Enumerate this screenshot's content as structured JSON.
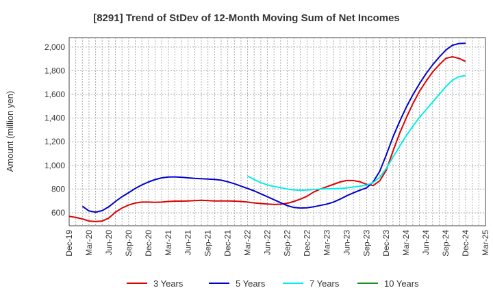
{
  "chart_data": {
    "type": "line",
    "title": "[8291]  Trend of StDev of 12-Month Moving Sum of Net Incomes",
    "ylabel": "Amount (million yen)",
    "xlabel": "",
    "ylim": [
      490,
      2080
    ],
    "yticks": [
      600,
      800,
      1000,
      1200,
      1400,
      1600,
      1800,
      2000
    ],
    "ytick_labels": [
      "600",
      "800",
      "1,000",
      "1,200",
      "1,400",
      "1,600",
      "1,800",
      "2,000"
    ],
    "x_range": [
      "2019-12",
      "2025-03"
    ],
    "xtick_labels": [
      "Dec-19",
      "Mar-20",
      "Jun-20",
      "Sep-20",
      "Dec-20",
      "Mar-21",
      "Jun-21",
      "Sep-21",
      "Dec-21",
      "Mar-22",
      "Jun-22",
      "Sep-22",
      "Dec-22",
      "Mar-23",
      "Jun-23",
      "Sep-23",
      "Dec-23",
      "Mar-24",
      "Jun-24",
      "Sep-24",
      "Dec-24",
      "Mar-25"
    ],
    "grid": true,
    "legend_position": "bottom",
    "series": [
      {
        "name": "3 Years",
        "color": "#dd0000",
        "points": [
          [
            "2019-12",
            570
          ],
          [
            "2020-01",
            560
          ],
          [
            "2020-02",
            548
          ],
          [
            "2020-03",
            530
          ],
          [
            "2020-04",
            525
          ],
          [
            "2020-05",
            530
          ],
          [
            "2020-06",
            555
          ],
          [
            "2020-07",
            605
          ],
          [
            "2020-08",
            640
          ],
          [
            "2020-09",
            665
          ],
          [
            "2020-10",
            682
          ],
          [
            "2020-11",
            690
          ],
          [
            "2020-12",
            690
          ],
          [
            "2021-01",
            688
          ],
          [
            "2021-02",
            690
          ],
          [
            "2021-03",
            695
          ],
          [
            "2021-04",
            698
          ],
          [
            "2021-05",
            698
          ],
          [
            "2021-06",
            700
          ],
          [
            "2021-07",
            703
          ],
          [
            "2021-08",
            705
          ],
          [
            "2021-09",
            702
          ],
          [
            "2021-10",
            700
          ],
          [
            "2021-11",
            700
          ],
          [
            "2021-12",
            700
          ],
          [
            "2022-01",
            698
          ],
          [
            "2022-02",
            695
          ],
          [
            "2022-03",
            690
          ],
          [
            "2022-04",
            683
          ],
          [
            "2022-05",
            678
          ],
          [
            "2022-06",
            673
          ],
          [
            "2022-07",
            670
          ],
          [
            "2022-08",
            672
          ],
          [
            "2022-09",
            680
          ],
          [
            "2022-10",
            695
          ],
          [
            "2022-11",
            715
          ],
          [
            "2022-12",
            740
          ],
          [
            "2023-01",
            775
          ],
          [
            "2023-02",
            800
          ],
          [
            "2023-03",
            820
          ],
          [
            "2023-04",
            840
          ],
          [
            "2023-05",
            860
          ],
          [
            "2023-06",
            872
          ],
          [
            "2023-07",
            872
          ],
          [
            "2023-08",
            862
          ],
          [
            "2023-09",
            840
          ],
          [
            "2023-10",
            830
          ],
          [
            "2023-11",
            870
          ],
          [
            "2023-12",
            960
          ],
          [
            "2024-01",
            1120
          ],
          [
            "2024-02",
            1270
          ],
          [
            "2024-03",
            1400
          ],
          [
            "2024-04",
            1520
          ],
          [
            "2024-05",
            1625
          ],
          [
            "2024-06",
            1710
          ],
          [
            "2024-07",
            1790
          ],
          [
            "2024-08",
            1850
          ],
          [
            "2024-09",
            1905
          ],
          [
            "2024-10",
            1918
          ],
          [
            "2024-11",
            1905
          ],
          [
            "2024-12",
            1878
          ]
        ]
      },
      {
        "name": "5 Years",
        "color": "#0000cc",
        "points": [
          [
            "2020-02",
            655
          ],
          [
            "2020-03",
            615
          ],
          [
            "2020-04",
            605
          ],
          [
            "2020-05",
            618
          ],
          [
            "2020-06",
            650
          ],
          [
            "2020-07",
            695
          ],
          [
            "2020-08",
            735
          ],
          [
            "2020-09",
            770
          ],
          [
            "2020-10",
            805
          ],
          [
            "2020-11",
            835
          ],
          [
            "2020-12",
            860
          ],
          [
            "2021-01",
            880
          ],
          [
            "2021-02",
            895
          ],
          [
            "2021-03",
            902
          ],
          [
            "2021-04",
            903
          ],
          [
            "2021-05",
            900
          ],
          [
            "2021-06",
            895
          ],
          [
            "2021-07",
            890
          ],
          [
            "2021-08",
            888
          ],
          [
            "2021-09",
            885
          ],
          [
            "2021-10",
            882
          ],
          [
            "2021-11",
            875
          ],
          [
            "2021-12",
            862
          ],
          [
            "2022-01",
            845
          ],
          [
            "2022-02",
            825
          ],
          [
            "2022-03",
            805
          ],
          [
            "2022-04",
            785
          ],
          [
            "2022-05",
            760
          ],
          [
            "2022-06",
            735
          ],
          [
            "2022-07",
            710
          ],
          [
            "2022-08",
            685
          ],
          [
            "2022-09",
            660
          ],
          [
            "2022-10",
            645
          ],
          [
            "2022-11",
            640
          ],
          [
            "2022-12",
            642
          ],
          [
            "2023-01",
            650
          ],
          [
            "2023-02",
            662
          ],
          [
            "2023-03",
            673
          ],
          [
            "2023-04",
            690
          ],
          [
            "2023-05",
            715
          ],
          [
            "2023-06",
            743
          ],
          [
            "2023-07",
            768
          ],
          [
            "2023-08",
            790
          ],
          [
            "2023-09",
            810
          ],
          [
            "2023-10",
            860
          ],
          [
            "2023-11",
            950
          ],
          [
            "2023-12",
            1090
          ],
          [
            "2024-01",
            1240
          ],
          [
            "2024-02",
            1370
          ],
          [
            "2024-03",
            1490
          ],
          [
            "2024-04",
            1595
          ],
          [
            "2024-05",
            1690
          ],
          [
            "2024-06",
            1775
          ],
          [
            "2024-07",
            1850
          ],
          [
            "2024-08",
            1915
          ],
          [
            "2024-09",
            1975
          ],
          [
            "2024-10",
            2015
          ],
          [
            "2024-11",
            2030
          ],
          [
            "2024-12",
            2032
          ]
        ]
      },
      {
        "name": "7 Years",
        "color": "#00eeee",
        "points": [
          [
            "2022-03",
            910
          ],
          [
            "2022-04",
            880
          ],
          [
            "2022-05",
            855
          ],
          [
            "2022-06",
            835
          ],
          [
            "2022-07",
            822
          ],
          [
            "2022-08",
            812
          ],
          [
            "2022-09",
            800
          ],
          [
            "2022-10",
            793
          ],
          [
            "2022-11",
            790
          ],
          [
            "2022-12",
            792
          ],
          [
            "2023-01",
            796
          ],
          [
            "2023-02",
            800
          ],
          [
            "2023-03",
            802
          ],
          [
            "2023-04",
            803
          ],
          [
            "2023-05",
            805
          ],
          [
            "2023-06",
            810
          ],
          [
            "2023-07",
            817
          ],
          [
            "2023-08",
            825
          ],
          [
            "2023-09",
            832
          ],
          [
            "2023-10",
            855
          ],
          [
            "2023-11",
            900
          ],
          [
            "2023-12",
            975
          ],
          [
            "2024-01",
            1070
          ],
          [
            "2024-02",
            1160
          ],
          [
            "2024-03",
            1250
          ],
          [
            "2024-04",
            1330
          ],
          [
            "2024-05",
            1405
          ],
          [
            "2024-06",
            1470
          ],
          [
            "2024-07",
            1535
          ],
          [
            "2024-08",
            1600
          ],
          [
            "2024-09",
            1665
          ],
          [
            "2024-10",
            1720
          ],
          [
            "2024-11",
            1750
          ],
          [
            "2024-12",
            1760
          ]
        ]
      },
      {
        "name": "10 Years",
        "color": "#228b22",
        "points": []
      }
    ]
  }
}
